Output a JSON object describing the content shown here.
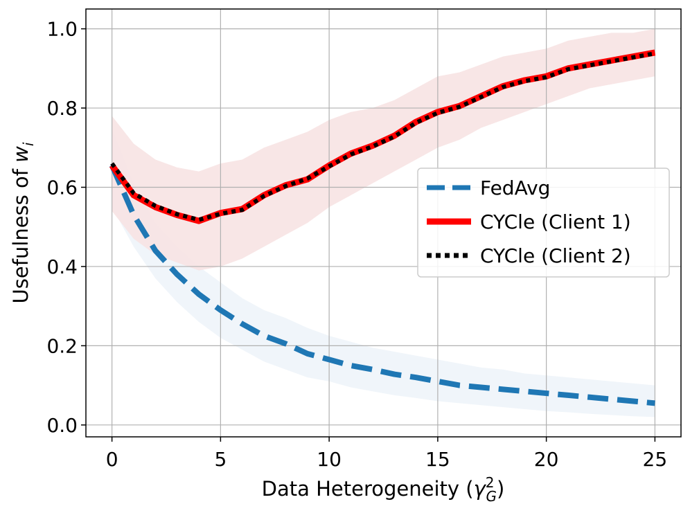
{
  "chart_data": {
    "type": "line",
    "xlabel_text": "Data Heterogeneity (",
    "xlabel_symbol": "γ",
    "xlabel_sup": "2",
    "xlabel_sub": "G",
    "xlabel_close": ")",
    "ylabel_text": "Usefulness of ",
    "ylabel_symbol": "w",
    "ylabel_sub": "i",
    "xlim": [
      -1.2,
      26.2
    ],
    "ylim": [
      -0.03,
      1.05
    ],
    "xticks": [
      0,
      5,
      10,
      15,
      20,
      25
    ],
    "yticks": [
      0.0,
      0.2,
      0.4,
      0.6,
      0.8,
      1.0
    ],
    "ytick_labels": [
      "0.0",
      "0.2",
      "0.4",
      "0.6",
      "0.8",
      "1.0"
    ],
    "grid": true,
    "legend_position": "center-right",
    "x": [
      0,
      1,
      2,
      3,
      4,
      5,
      6,
      7,
      8,
      9,
      10,
      11,
      12,
      13,
      14,
      15,
      16,
      17,
      18,
      19,
      20,
      21,
      22,
      23,
      24,
      25
    ],
    "series": [
      {
        "name": "FedAvg",
        "color": "#1f77b4",
        "style": "dashed",
        "values": [
          0.655,
          0.53,
          0.44,
          0.38,
          0.33,
          0.29,
          0.255,
          0.225,
          0.205,
          0.18,
          0.165,
          0.15,
          0.14,
          0.128,
          0.12,
          0.11,
          0.1,
          0.095,
          0.09,
          0.085,
          0.08,
          0.075,
          0.07,
          0.065,
          0.06,
          0.055
        ],
        "band_lower": [
          0.55,
          0.45,
          0.37,
          0.31,
          0.26,
          0.22,
          0.19,
          0.16,
          0.14,
          0.12,
          0.11,
          0.095,
          0.085,
          0.075,
          0.068,
          0.06,
          0.055,
          0.05,
          0.045,
          0.04,
          0.035,
          0.032,
          0.028,
          0.025,
          0.022,
          0.02
        ],
        "band_upper": [
          0.75,
          0.61,
          0.51,
          0.45,
          0.4,
          0.36,
          0.32,
          0.29,
          0.27,
          0.245,
          0.225,
          0.21,
          0.195,
          0.185,
          0.175,
          0.165,
          0.155,
          0.145,
          0.14,
          0.13,
          0.125,
          0.12,
          0.115,
          0.11,
          0.105,
          0.1
        ]
      },
      {
        "name": "CYCle (Client 1)",
        "color": "#ff0000",
        "style": "solid",
        "values": [
          0.655,
          0.58,
          0.55,
          0.53,
          0.515,
          0.535,
          0.545,
          0.58,
          0.605,
          0.62,
          0.655,
          0.685,
          0.705,
          0.73,
          0.765,
          0.79,
          0.805,
          0.83,
          0.855,
          0.87,
          0.88,
          0.9,
          0.91,
          0.92,
          0.93,
          0.94
        ],
        "band_lower": [
          0.54,
          0.47,
          0.43,
          0.41,
          0.39,
          0.4,
          0.42,
          0.45,
          0.48,
          0.51,
          0.55,
          0.58,
          0.61,
          0.64,
          0.67,
          0.7,
          0.72,
          0.75,
          0.77,
          0.79,
          0.81,
          0.83,
          0.85,
          0.86,
          0.87,
          0.88
        ],
        "band_upper": [
          0.78,
          0.71,
          0.67,
          0.65,
          0.64,
          0.66,
          0.67,
          0.7,
          0.72,
          0.74,
          0.77,
          0.79,
          0.8,
          0.82,
          0.85,
          0.88,
          0.89,
          0.91,
          0.93,
          0.94,
          0.95,
          0.97,
          0.98,
          0.99,
          0.99,
          1.0
        ]
      },
      {
        "name": "CYCle (Client 2)",
        "color": "#000000",
        "style": "dotted",
        "values": [
          0.66,
          0.585,
          0.553,
          0.532,
          0.518,
          0.533,
          0.543,
          0.578,
          0.603,
          0.622,
          0.653,
          0.683,
          0.703,
          0.728,
          0.763,
          0.788,
          0.803,
          0.828,
          0.853,
          0.868,
          0.878,
          0.898,
          0.908,
          0.918,
          0.928,
          0.938
        ]
      }
    ],
    "band_colors": [
      "#eef4fa",
      "#f7e3e3"
    ]
  }
}
